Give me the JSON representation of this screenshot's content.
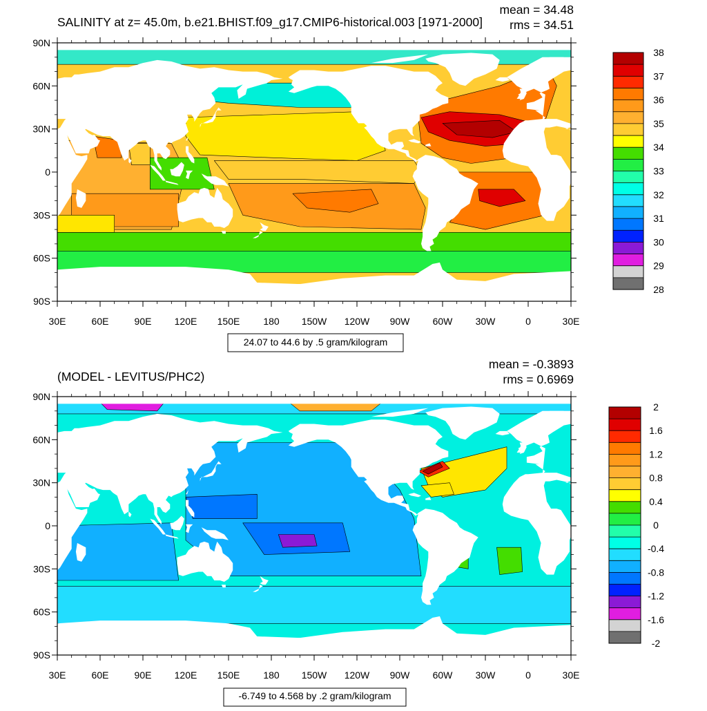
{
  "panels": [
    {
      "id": "salinity",
      "title": "SALINITY at z=  45.0m, b.e21.BHIST.f09_g17.CMIP6-historical.003 [1971-2000]",
      "mean": "mean = 34.48",
      "rms": "rms = 34.51",
      "contour_info": "24.07 to 44.6 by .5 gram/kilogram",
      "lat_labels": [
        "90N",
        "60N",
        "30N",
        "0",
        "30S",
        "60S",
        "90S"
      ],
      "lon_labels": [
        "30E",
        "60E",
        "90E",
        "120E",
        "150E",
        "180",
        "150W",
        "120W",
        "90W",
        "60W",
        "30W",
        "0",
        "30E"
      ],
      "colorbar": {
        "labels": [
          "38",
          "37",
          "36",
          "35",
          "34",
          "33",
          "32",
          "31",
          "30",
          "29",
          "28"
        ],
        "colors": [
          "#b30000",
          "#e00000",
          "#ff2a00",
          "#ff7a00",
          "#ff9a1a",
          "#ffb030",
          "#ffcc33",
          "#ffff00",
          "#44dd00",
          "#22ee44",
          "#22ffaa",
          "#00ffe6",
          "#22ddff",
          "#11b0ff",
          "#0077ff",
          "#0022ff",
          "#8b1ad6",
          "#e01ee0",
          "#d3d3d3",
          "#707070"
        ]
      }
    },
    {
      "id": "difference",
      "title": "(MODEL - LEVITUS/PHC2)",
      "mean": "mean = -0.3893",
      "rms": "rms = 0.6969",
      "contour_info": "-6.749 to 4.568 by .2 gram/kilogram",
      "lat_labels": [
        "90N",
        "60N",
        "30N",
        "0",
        "30S",
        "60S",
        "90S"
      ],
      "lon_labels": [
        "30E",
        "60E",
        "90E",
        "120E",
        "150E",
        "180",
        "150W",
        "120W",
        "90W",
        "60W",
        "30W",
        "0",
        "30E"
      ],
      "colorbar": {
        "labels": [
          "2",
          "1.6",
          "1.2",
          "0.8",
          "0.4",
          "0",
          "-0.4",
          "-0.8",
          "-1.2",
          "-1.6",
          "-2"
        ],
        "colors": [
          "#b30000",
          "#e00000",
          "#ff2a00",
          "#ff7a00",
          "#ff9a1a",
          "#ffb030",
          "#ffcc33",
          "#ffff00",
          "#44dd00",
          "#22ee44",
          "#22ffaa",
          "#00ffe6",
          "#22ddff",
          "#11b0ff",
          "#0077ff",
          "#0022ff",
          "#8b1ad6",
          "#e01ee0",
          "#d3d3d3",
          "#707070"
        ]
      }
    }
  ],
  "ocean_colors": {
    "salinity": {
      "arctic": "#33e8c8",
      "north_pacific": "#00f0d8",
      "pacific_subtropics": "#ffe600",
      "pacific_equator": "#ffcc33",
      "south_pacific_gyre": "#ff9a1a",
      "south_pacific_core": "#ff7a00",
      "southern_ocean": "#44dd00",
      "antarctic_band": "#22ee44",
      "north_atlantic": "#ff7a00",
      "atlantic_core": "#e00000",
      "atlantic_max": "#b30000",
      "indian": "#ffb030",
      "indian_south": "#ff9a1a",
      "arabian_sea": "#ff7a00",
      "bay_of_bengal": "#ffcc33",
      "indonesian_seas": "#44dd00"
    },
    "difference": {
      "background": "#00f0e0",
      "pacific_negative": "#11b0ff",
      "pacific_core": "#0077ff",
      "pacific_min": "#8b1ad6",
      "atlantic_positive": "#ffe600",
      "gulf_stream": "#ff2a00",
      "gulf_core": "#b30000",
      "southern_ocean": "#22ddff",
      "arctic": "#22ddff",
      "arctic_positive": "#ffb030",
      "arctic_negative": "#e01ee0",
      "indian_positive": "#44dd00",
      "south_atlantic_positive": "#44dd00"
    }
  }
}
